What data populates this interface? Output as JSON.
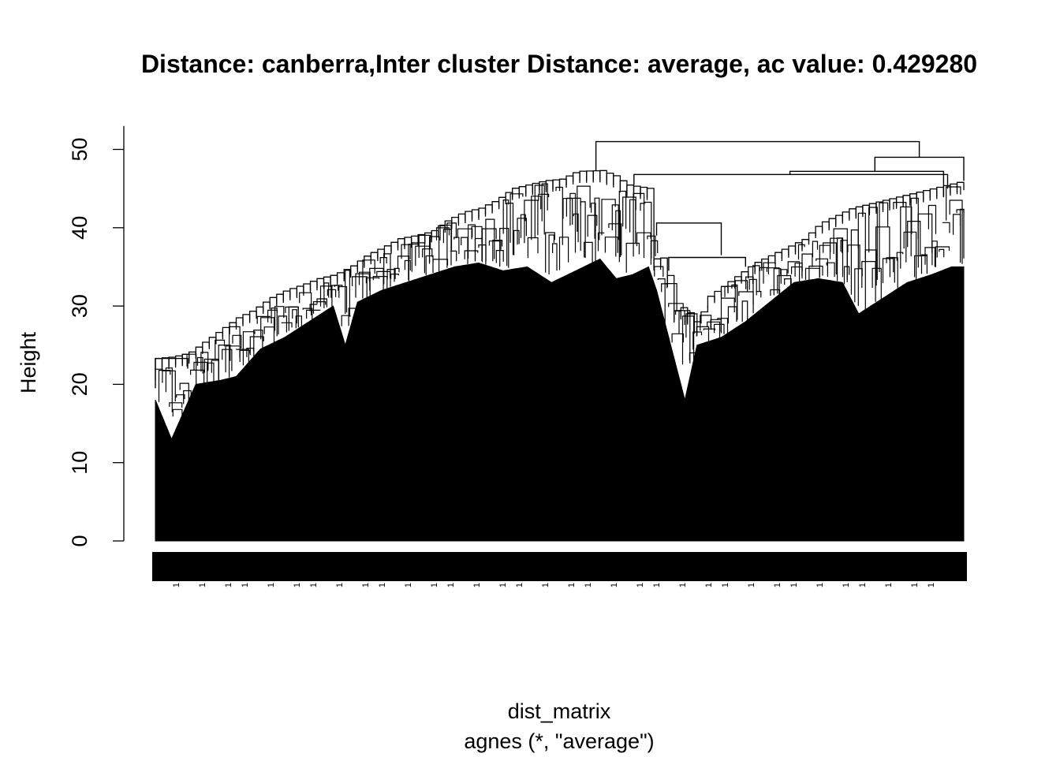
{
  "chart_data": {
    "type": "dendrogram",
    "title": "Distance: canberra,Inter cluster Distance: average, ac value: 0.429280",
    "ylabel": "Height",
    "xlabel": "dist_matrix",
    "sublabel": "agnes (*, \"average\")",
    "ylim": [
      0,
      53
    ],
    "yticks": [
      0,
      10,
      20,
      30,
      40,
      50
    ],
    "leaf_label_text": "1",
    "top_merges": [
      {
        "node": "root",
        "height": 51.0
      },
      {
        "node": "right-main",
        "height": 49.0
      },
      {
        "node": "right-mid",
        "height": 47.2
      },
      {
        "node": "left-group",
        "height": 47.3
      },
      {
        "node": "center-right",
        "height": 46.8
      },
      {
        "node": "valley-group",
        "height": 40.6
      },
      {
        "node": "valley-inner",
        "height": 36.2
      }
    ],
    "envelope": [
      [
        0.0,
        23.3
      ],
      [
        0.02,
        23.5
      ],
      [
        0.04,
        24.0
      ],
      [
        0.06,
        25.5
      ],
      [
        0.08,
        27.0
      ],
      [
        0.1,
        28.5
      ],
      [
        0.12,
        29.5
      ],
      [
        0.14,
        31.0
      ],
      [
        0.16,
        32.0
      ],
      [
        0.18,
        32.7
      ],
      [
        0.2,
        33.5
      ],
      [
        0.22,
        34.0
      ],
      [
        0.24,
        35.0
      ],
      [
        0.26,
        36.5
      ],
      [
        0.28,
        37.5
      ],
      [
        0.3,
        38.6
      ],
      [
        0.32,
        39.0
      ],
      [
        0.34,
        39.5
      ],
      [
        0.36,
        41.0
      ],
      [
        0.38,
        42.0
      ],
      [
        0.4,
        42.5
      ],
      [
        0.42,
        43.5
      ],
      [
        0.44,
        45.0
      ],
      [
        0.46,
        45.5
      ],
      [
        0.48,
        46.0
      ],
      [
        0.5,
        46.2
      ],
      [
        0.52,
        47.2
      ],
      [
        0.55,
        47.3
      ],
      [
        0.57,
        46.5
      ],
      [
        0.58,
        45.5
      ],
      [
        0.61,
        45.0
      ],
      [
        0.615,
        36.0
      ],
      [
        0.63,
        36.2
      ],
      [
        0.64,
        29.3
      ],
      [
        0.65,
        29.8
      ],
      [
        0.66,
        29.0
      ],
      [
        0.67,
        27.5
      ],
      [
        0.68,
        31.0
      ],
      [
        0.7,
        32.5
      ],
      [
        0.72,
        34.0
      ],
      [
        0.74,
        35.5
      ],
      [
        0.76,
        36.5
      ],
      [
        0.78,
        37.5
      ],
      [
        0.8,
        38.5
      ],
      [
        0.82,
        40.5
      ],
      [
        0.84,
        41.5
      ],
      [
        0.86,
        42.5
      ],
      [
        0.88,
        43.0
      ],
      [
        0.9,
        43.5
      ],
      [
        0.92,
        44.0
      ],
      [
        0.94,
        44.5
      ],
      [
        0.96,
        45.0
      ],
      [
        0.98,
        45.5
      ],
      [
        1.0,
        46.0
      ]
    ],
    "floor": [
      [
        0.0,
        18.0
      ],
      [
        0.02,
        13.0
      ],
      [
        0.05,
        20.0
      ],
      [
        0.08,
        20.5
      ],
      [
        0.1,
        21.0
      ],
      [
        0.13,
        24.5
      ],
      [
        0.16,
        26.0
      ],
      [
        0.19,
        28.0
      ],
      [
        0.22,
        30.0
      ],
      [
        0.235,
        25.0
      ],
      [
        0.25,
        30.5
      ],
      [
        0.28,
        32.0
      ],
      [
        0.31,
        33.0
      ],
      [
        0.34,
        34.0
      ],
      [
        0.37,
        35.0
      ],
      [
        0.4,
        35.5
      ],
      [
        0.43,
        34.5
      ],
      [
        0.46,
        35.0
      ],
      [
        0.49,
        33.0
      ],
      [
        0.52,
        34.5
      ],
      [
        0.55,
        36.0
      ],
      [
        0.57,
        33.5
      ],
      [
        0.59,
        34.0
      ],
      [
        0.61,
        35.0
      ],
      [
        0.62,
        32.0
      ],
      [
        0.64,
        24.0
      ],
      [
        0.655,
        18.0
      ],
      [
        0.67,
        25.0
      ],
      [
        0.7,
        26.0
      ],
      [
        0.73,
        28.0
      ],
      [
        0.76,
        30.5
      ],
      [
        0.79,
        33.0
      ],
      [
        0.82,
        33.5
      ],
      [
        0.85,
        33.0
      ],
      [
        0.87,
        29.0
      ],
      [
        0.9,
        31.0
      ],
      [
        0.93,
        33.0
      ],
      [
        0.96,
        34.0
      ],
      [
        0.985,
        35.0
      ],
      [
        1.0,
        35.0
      ]
    ]
  }
}
